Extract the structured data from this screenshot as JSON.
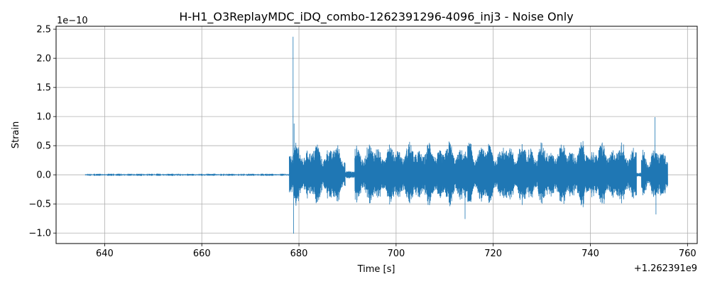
{
  "chart_data": {
    "type": "line",
    "title": "H-H1_O3ReplayMDC_iDQ_combo-1262391296-4096_inj3 - Noise Only",
    "xlabel": "Time [s]",
    "ylabel": "Strain",
    "x_offset_label": "+1.262391e9",
    "y_scale_label": "1e−10",
    "xlim": [
      630,
      762
    ],
    "ylim": [
      -1.18,
      2.55
    ],
    "x_ticks": [
      640,
      660,
      680,
      700,
      720,
      740,
      760
    ],
    "y_ticks": [
      -1.0,
      -0.5,
      0.0,
      0.5,
      1.0,
      1.5,
      2.0,
      2.5
    ],
    "y_tick_labels": [
      "−1.0",
      "−0.5",
      "0.0",
      "0.5",
      "1.0",
      "1.5",
      "2.0",
      "2.5"
    ],
    "grid": true,
    "line_color": "#1f77b4",
    "segments": [
      {
        "start": 636.0,
        "end": 678.0,
        "envelope": 0.01
      },
      {
        "start": 678.0,
        "end": 679.0,
        "envelope": 0.55
      },
      {
        "start": 679.0,
        "end": 689.5,
        "envelope": 0.58
      },
      {
        "start": 689.5,
        "end": 691.5,
        "envelope": 0.08
      },
      {
        "start": 691.5,
        "end": 749.5,
        "envelope": 0.6
      },
      {
        "start": 749.5,
        "end": 750.5,
        "envelope": 0.05
      },
      {
        "start": 750.5,
        "end": 755.9,
        "envelope": 0.5
      }
    ],
    "spikes": [
      {
        "x": 678.8,
        "y": 2.37
      },
      {
        "x": 678.9,
        "y": -1.01
      },
      {
        "x": 679.0,
        "y": 0.88
      },
      {
        "x": 714.2,
        "y": -0.76
      },
      {
        "x": 753.3,
        "y": 0.99
      },
      {
        "x": 753.5,
        "y": -0.68
      }
    ]
  }
}
